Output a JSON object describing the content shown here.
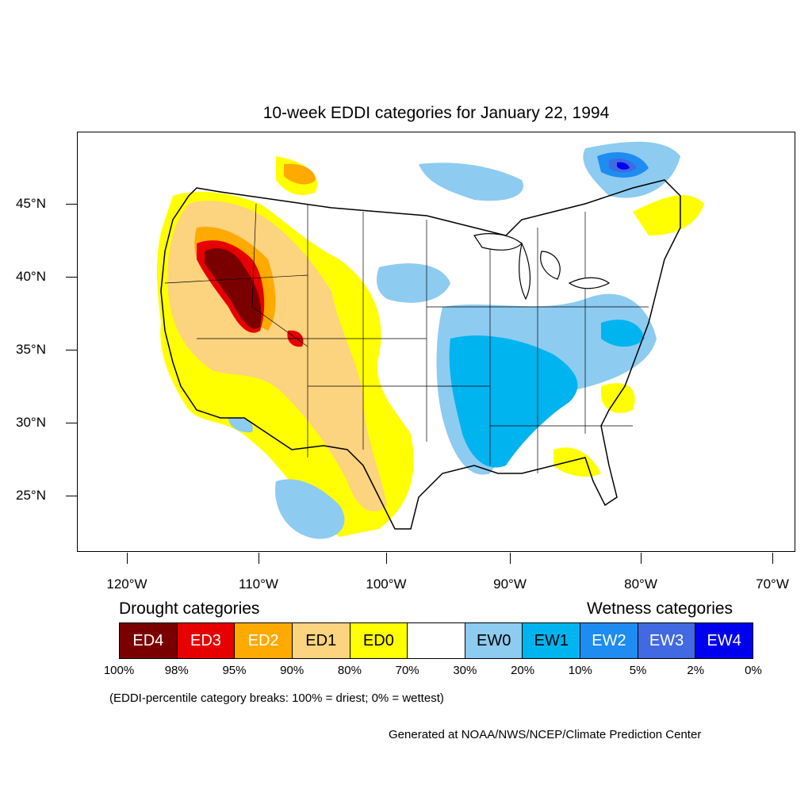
{
  "title": "10-week EDDI categories for January 22, 1994",
  "latitude_labels": [
    "45°N",
    "40°N",
    "35°N",
    "30°N",
    "25°N"
  ],
  "longitude_labels": [
    "120°W",
    "110°W",
    "100°W",
    "90°W",
    "80°W",
    "70°W"
  ],
  "legend": {
    "drought_heading": "Drought categories",
    "wetness_heading": "Wetness categories",
    "categories": [
      {
        "label": "ED4",
        "color": "#7a0000",
        "text_color": "#ffffff"
      },
      {
        "label": "ED3",
        "color": "#e60000",
        "text_color": "#ffffff"
      },
      {
        "label": "ED2",
        "color": "#ffaa00",
        "text_color": "#ffffff"
      },
      {
        "label": "ED1",
        "color": "#fcd37f",
        "text_color": "#000000"
      },
      {
        "label": "ED0",
        "color": "#ffff00",
        "text_color": "#000000"
      },
      {
        "label": "",
        "color": "#ffffff",
        "text_color": "#000000"
      },
      {
        "label": "EW0",
        "color": "#8ecbf0",
        "text_color": "#000000"
      },
      {
        "label": "EW1",
        "color": "#00b4f0",
        "text_color": "#000000"
      },
      {
        "label": "EW2",
        "color": "#1e8cf0",
        "text_color": "#ffffff"
      },
      {
        "label": "EW3",
        "color": "#4169e1",
        "text_color": "#ffffff"
      },
      {
        "label": "EW4",
        "color": "#0000f0",
        "text_color": "#ffffff"
      }
    ],
    "percentile_breaks": [
      "100%",
      "98%",
      "95%",
      "90%",
      "80%",
      "70%",
      "30%",
      "20%",
      "10%",
      "5%",
      "2%",
      "0%"
    ]
  },
  "breaks_note": "(EDDI-percentile category breaks: 100% = driest; 0% = wettest)",
  "credit": "Generated at NOAA/NWS/NCEP/Climate Prediction Center"
}
